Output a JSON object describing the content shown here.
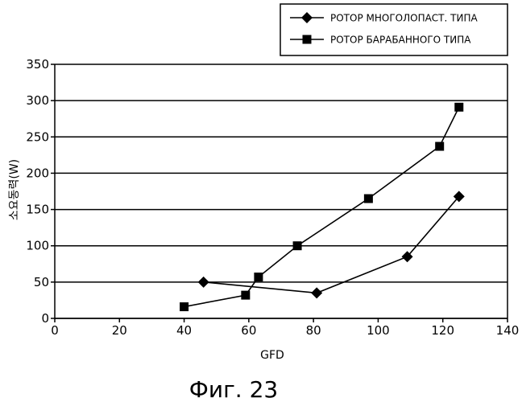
{
  "chart_data": {
    "type": "line",
    "title": "",
    "caption": "Фиг. 23",
    "xlabel": "GFD",
    "ylabel": "소요동력(W)",
    "xlim": [
      0,
      140
    ],
    "ylim": [
      0,
      350
    ],
    "x_ticks": [
      "0",
      "20",
      "40",
      "60",
      "80",
      "100",
      "120",
      "140"
    ],
    "y_ticks": [
      "0",
      "50",
      "100",
      "150",
      "200",
      "250",
      "300",
      "350"
    ],
    "grid": "horizontal",
    "legend_position": "top-right",
    "series": [
      {
        "name": "РОТОР МНОГОЛОПАСТ. ТИПА",
        "marker": "diamond",
        "color": "#000000",
        "points": [
          {
            "x": 46,
            "y": 50
          },
          {
            "x": 81,
            "y": 35
          },
          {
            "x": 109,
            "y": 85
          },
          {
            "x": 125,
            "y": 168
          }
        ]
      },
      {
        "name": "РОТОР БАРАБАННОГО ТИПА",
        "marker": "square",
        "color": "#000000",
        "points": [
          {
            "x": 40,
            "y": 16
          },
          {
            "x": 59,
            "y": 32
          },
          {
            "x": 63,
            "y": 57
          },
          {
            "x": 75,
            "y": 100
          },
          {
            "x": 97,
            "y": 165
          },
          {
            "x": 119,
            "y": 237
          },
          {
            "x": 125,
            "y": 291
          }
        ]
      }
    ]
  }
}
